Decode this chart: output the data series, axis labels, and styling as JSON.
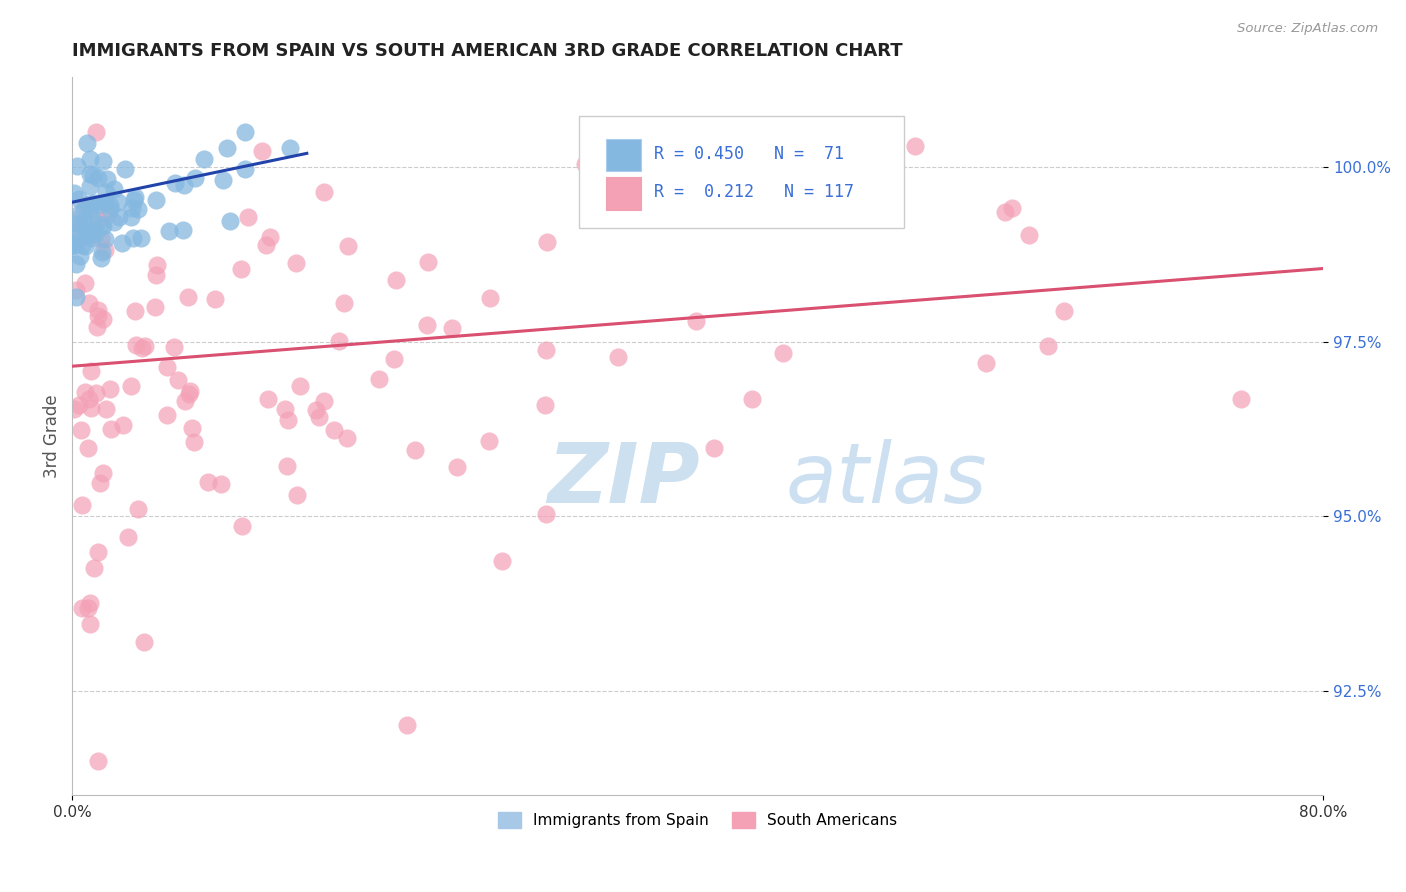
{
  "title": "IMMIGRANTS FROM SPAIN VS SOUTH AMERICAN 3RD GRADE CORRELATION CHART",
  "source": "Source: ZipAtlas.com",
  "ylabel": "3rd Grade",
  "xlim": [
    0.0,
    80.0
  ],
  "ylim": [
    91.0,
    101.3
  ],
  "yticks": [
    92.5,
    95.0,
    97.5,
    100.0
  ],
  "blue_R": 0.45,
  "blue_N": 71,
  "pink_R": 0.212,
  "pink_N": 117,
  "blue_color": "#85b8e0",
  "pink_color": "#f4a0b5",
  "blue_line_color": "#2244aa",
  "pink_line_color": "#d95070",
  "legend_blue_label": "Immigrants from Spain",
  "legend_pink_label": "South Americans",
  "watermark_zip": "ZIP",
  "watermark_atlas": "atlas",
  "background_color": "#ffffff"
}
